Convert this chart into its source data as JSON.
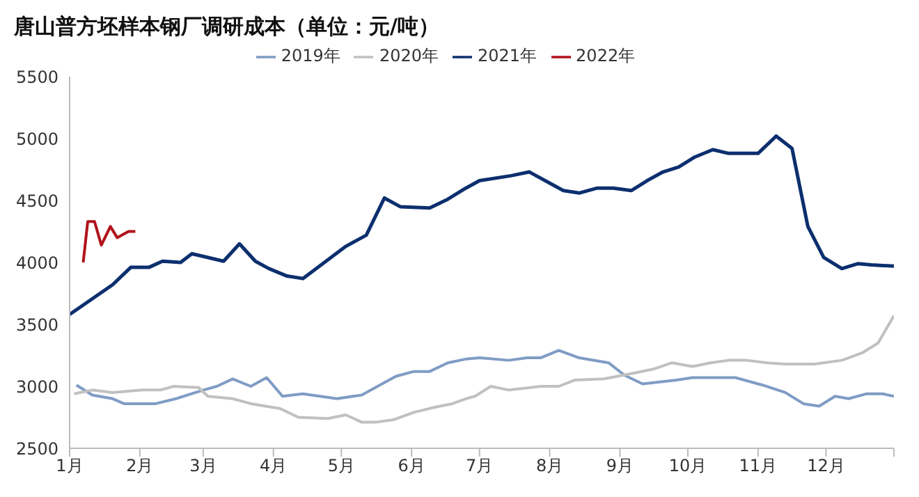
{
  "chart_data": {
    "type": "line",
    "title": "唐山普方坯样本钢厂调研成本（单位：元/吨）",
    "xlim": [
      "--01-01",
      "--12-31"
    ],
    "xticks": [
      {
        "value": "--01-01",
        "label": "1月"
      },
      {
        "value": "--02-01",
        "label": "2月"
      },
      {
        "value": "--03-01",
        "label": "3月"
      },
      {
        "value": "--04-01",
        "label": "4月"
      },
      {
        "value": "--05-01",
        "label": "5月"
      },
      {
        "value": "--06-01",
        "label": "6月"
      },
      {
        "value": "--07-01",
        "label": "7月"
      },
      {
        "value": "--08-01",
        "label": "8月"
      },
      {
        "value": "--09-01",
        "label": "9月"
      },
      {
        "value": "--10-01",
        "label": "10月"
      },
      {
        "value": "--11-01",
        "label": "11月"
      },
      {
        "value": "--12-01",
        "label": "12月"
      },
      {
        "value": "--12-31",
        "label": null
      }
    ],
    "ylim": [
      2500,
      5500
    ],
    "yticks": [
      2500,
      3000,
      3500,
      4000,
      4500,
      5000,
      5500
    ],
    "grid": false,
    "legend": "top",
    "marker": "none",
    "line_style": "solid",
    "series": [
      {
        "name": "2019年",
        "color": "#7f9cc4",
        "x": [
          "--01-04",
          "--01-11",
          "--01-20",
          "--01-25",
          "--02-08",
          "--02-17",
          "--03-01",
          "--03-07",
          "--03-14",
          "--03-22",
          "--03-29",
          "--04-05",
          "--04-14",
          "--04-29",
          "--05-10",
          "--05-17",
          "--05-25",
          "--06-02",
          "--06-09",
          "--06-17",
          "--06-25",
          "--07-01",
          "--07-14",
          "--07-22",
          "--07-28",
          "--08-05",
          "--08-14",
          "--08-27",
          "--09-03",
          "--09-11",
          "--09-26",
          "--10-03",
          "--10-22",
          "--11-03",
          "--11-13",
          "--11-21",
          "--11-28",
          "--12-05",
          "--12-11",
          "--12-19",
          "--12-26",
          "--12-31"
        ],
        "values": [
          3010,
          2930,
          2900,
          2860,
          2860,
          2900,
          2970,
          3000,
          3060,
          3000,
          3070,
          2920,
          2940,
          2900,
          2930,
          3000,
          3080,
          3120,
          3120,
          3190,
          3220,
          3230,
          3210,
          3230,
          3230,
          3290,
          3230,
          3190,
          3090,
          3020,
          3050,
          3070,
          3070,
          3010,
          2950,
          2860,
          2840,
          2920,
          2900,
          2940,
          2940,
          2920
        ]
      },
      {
        "name": "2020年",
        "color": "#c0c0c0",
        "x": [
          "--01-03",
          "--01-11",
          "--01-20",
          "--02-02",
          "--02-10",
          "--02-16",
          "--02-27",
          "--03-03",
          "--03-14",
          "--03-22",
          "--04-04",
          "--04-12",
          "--04-25",
          "--05-03",
          "--05-10",
          "--05-16",
          "--05-24",
          "--06-02",
          "--06-11",
          "--06-19",
          "--06-25",
          "--06-29",
          "--07-06",
          "--07-14",
          "--07-28",
          "--08-05",
          "--08-12",
          "--08-25",
          "--09-08",
          "--09-16",
          "--09-24",
          "--10-03",
          "--10-11",
          "--10-19",
          "--10-27",
          "--11-05",
          "--11-13",
          "--11-26",
          "--12-08",
          "--12-17",
          "--12-24",
          "--12-31"
        ],
        "values": [
          2940,
          2970,
          2950,
          2970,
          2970,
          3000,
          2990,
          2920,
          2900,
          2860,
          2820,
          2750,
          2740,
          2770,
          2710,
          2710,
          2730,
          2790,
          2830,
          2860,
          2900,
          2920,
          3000,
          2970,
          3000,
          3000,
          3050,
          3060,
          3110,
          3140,
          3190,
          3160,
          3190,
          3210,
          3210,
          3190,
          3180,
          3180,
          3210,
          3270,
          3350,
          3570
        ]
      },
      {
        "name": "2021年",
        "color": "#0c2f6e",
        "x": [
          "--01-01",
          "--01-20",
          "--01-28",
          "--02-05",
          "--02-11",
          "--02-19",
          "--02-24",
          "--03-10",
          "--03-17",
          "--03-24",
          "--03-30",
          "--04-07",
          "--04-14",
          "--05-03",
          "--05-12",
          "--05-20",
          "--05-27",
          "--06-09",
          "--06-17",
          "--06-25",
          "--07-01",
          "--07-15",
          "--07-23",
          "--08-07",
          "--08-14",
          "--08-22",
          "--08-29",
          "--09-06",
          "--09-13",
          "--09-20",
          "--09-27",
          "--10-04",
          "--10-12",
          "--10-19",
          "--11-01",
          "--11-09",
          "--11-16",
          "--11-23",
          "--11-30",
          "--12-08",
          "--12-15",
          "--12-21",
          "--12-31"
        ],
        "values": [
          3580,
          3820,
          3960,
          3960,
          4010,
          4000,
          4070,
          4010,
          4150,
          4010,
          3950,
          3890,
          3870,
          4130,
          4220,
          4520,
          4450,
          4440,
          4510,
          4600,
          4660,
          4700,
          4730,
          4580,
          4560,
          4600,
          4600,
          4580,
          4660,
          4730,
          4770,
          4850,
          4910,
          4880,
          4880,
          5020,
          4920,
          4290,
          4040,
          3950,
          3990,
          3980,
          3970
        ]
      },
      {
        "name": "2022年",
        "color": "#b0121b",
        "x": [
          "--01-07",
          "--01-09",
          "--01-12",
          "--01-15",
          "--01-19",
          "--01-22",
          "--01-27",
          "--01-30"
        ],
        "values": [
          4000,
          4330,
          4330,
          4140,
          4290,
          4200,
          4250,
          4250
        ]
      }
    ]
  }
}
